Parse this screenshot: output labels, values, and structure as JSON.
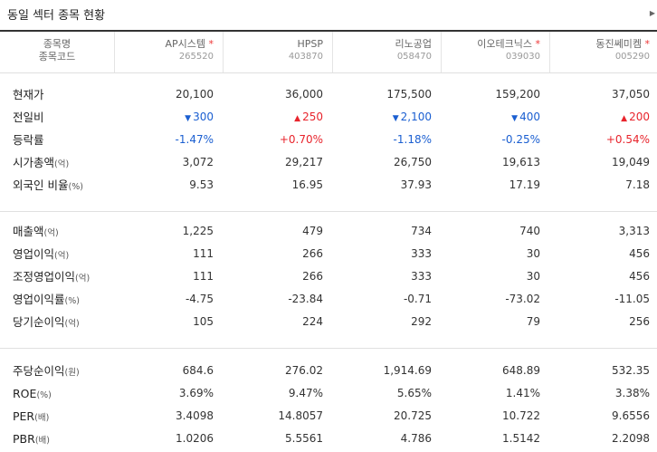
{
  "title": "동일 섹터 종목 현황",
  "scroll_glyph": "▶",
  "header": {
    "label_name": "종목명",
    "label_code": "종목코드",
    "stocks": [
      {
        "name": "AP시스템",
        "code": "265520",
        "star": "*"
      },
      {
        "name": "HPSP",
        "code": "403870",
        "star": ""
      },
      {
        "name": "리노공업",
        "code": "058470",
        "star": ""
      },
      {
        "name": "이오테크닉스",
        "code": "039030",
        "star": "*"
      },
      {
        "name": "동진쎄미켐",
        "code": "005290",
        "star": "*"
      }
    ]
  },
  "rows": [
    {
      "label": "현재가",
      "unit": "",
      "values": [
        "20,100",
        "36,000",
        "175,500",
        "159,200",
        "37,050"
      ],
      "colors": [
        "",
        "",
        "",
        "",
        ""
      ]
    },
    {
      "label": "전일비",
      "unit": "",
      "values": [
        "300",
        "250",
        "2,100",
        "400",
        "200"
      ],
      "colors": [
        "down",
        "up",
        "down",
        "down",
        "up"
      ],
      "arrows": [
        "▼",
        "▲",
        "▼",
        "▼",
        "▲"
      ]
    },
    {
      "label": "등락률",
      "unit": "",
      "values": [
        "-1.47%",
        "+0.70%",
        "-1.18%",
        "-0.25%",
        "+0.54%"
      ],
      "colors": [
        "down",
        "up",
        "down",
        "down",
        "up"
      ]
    },
    {
      "label": "시가총액",
      "unit": "(억)",
      "values": [
        "3,072",
        "29,217",
        "26,750",
        "19,613",
        "19,049"
      ],
      "colors": [
        "",
        "",
        "",
        "",
        ""
      ]
    },
    {
      "label": "외국인 비율",
      "unit": "(%)",
      "values": [
        "9.53",
        "16.95",
        "37.93",
        "17.19",
        "7.18"
      ],
      "colors": [
        "",
        "",
        "",
        "",
        ""
      ]
    },
    {
      "label": "매출액",
      "unit": "(억)",
      "values": [
        "1,225",
        "479",
        "734",
        "740",
        "3,313"
      ],
      "colors": [
        "",
        "",
        "",
        "",
        ""
      ]
    },
    {
      "label": "영업이익",
      "unit": "(억)",
      "values": [
        "111",
        "266",
        "333",
        "30",
        "456"
      ],
      "colors": [
        "",
        "",
        "",
        "",
        ""
      ]
    },
    {
      "label": "조정영업이익",
      "unit": "(억)",
      "values": [
        "111",
        "266",
        "333",
        "30",
        "456"
      ],
      "colors": [
        "",
        "",
        "",
        "",
        ""
      ]
    },
    {
      "label": "영업이익률",
      "unit": "(%)",
      "values": [
        "-4.75",
        "-23.84",
        "-0.71",
        "-73.02",
        "-11.05"
      ],
      "colors": [
        "",
        "",
        "",
        "",
        ""
      ]
    },
    {
      "label": "당기순이익",
      "unit": "(억)",
      "values": [
        "105",
        "224",
        "292",
        "79",
        "256"
      ],
      "colors": [
        "",
        "",
        "",
        "",
        ""
      ]
    },
    {
      "label": "주당순이익",
      "unit": "(원)",
      "values": [
        "684.6",
        "276.02",
        "1,914.69",
        "648.89",
        "532.35"
      ],
      "colors": [
        "",
        "",
        "",
        "",
        ""
      ]
    },
    {
      "label": "ROE",
      "unit": "(%)",
      "values": [
        "3.69%",
        "9.47%",
        "5.65%",
        "1.41%",
        "3.38%"
      ],
      "colors": [
        "",
        "",
        "",
        "",
        ""
      ]
    },
    {
      "label": "PER",
      "unit": "(배)",
      "values": [
        "3.4098",
        "14.8057",
        "20.725",
        "10.722",
        "9.6556"
      ],
      "colors": [
        "",
        "",
        "",
        "",
        ""
      ]
    },
    {
      "label": "PBR",
      "unit": "(배)",
      "values": [
        "1.0206",
        "5.5561",
        "4.786",
        "1.5142",
        "2.2098"
      ],
      "colors": [
        "",
        "",
        "",
        "",
        ""
      ]
    }
  ],
  "colors": {
    "up": "#e8242c",
    "down": "#1b5fd1",
    "border": "#333333"
  }
}
